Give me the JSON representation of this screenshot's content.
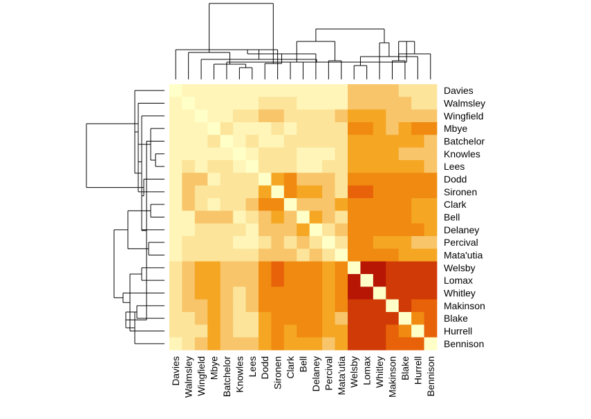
{
  "chart_data": {
    "type": "heatmap",
    "title": "",
    "xlabel": "",
    "ylabel": "",
    "row_labels": [
      "Davies",
      "Walmsley",
      "Wingfield",
      "Mbye",
      "Batchelor",
      "Knowles",
      "Lees",
      "Dodd",
      "Sironen",
      "Clark",
      "Bell",
      "Delaney",
      "Percival",
      "Mata'utia",
      "Welsby",
      "Lomax",
      "Whitley",
      "Makinson",
      "Blake",
      "Hurrell",
      "Bennison"
    ],
    "col_labels": [
      "Davies",
      "Walmsley",
      "Wingfield",
      "Mbye",
      "Batchelor",
      "Knowles",
      "Lees",
      "Dodd",
      "Sironen",
      "Clark",
      "Bell",
      "Delaney",
      "Percival",
      "Mata'utia",
      "Welsby",
      "Lomax",
      "Whitley",
      "Makinson",
      "Blake",
      "Hurrell",
      "Bennison"
    ],
    "value_range": [
      0,
      10
    ],
    "color_scale": [
      "#ffffc8",
      "#fff5b8",
      "#fce49a",
      "#f8c56a",
      "#f5a623",
      "#f08a10",
      "#e8620a",
      "#d03a06",
      "#b81604",
      "#7d0022"
    ],
    "values": [
      [
        0,
        1,
        1,
        1,
        1,
        1,
        1,
        1,
        1,
        1,
        1,
        1,
        1,
        1,
        3,
        3,
        3,
        3,
        2,
        2,
        2
      ],
      [
        1,
        0,
        1,
        1,
        1,
        1,
        1,
        2,
        2,
        2,
        1,
        1,
        1,
        1,
        3,
        3,
        3,
        3,
        3,
        2,
        2
      ],
      [
        1,
        1,
        0,
        1,
        1,
        2,
        2,
        3,
        3,
        2,
        2,
        2,
        2,
        3,
        4,
        4,
        4,
        3,
        3,
        3,
        3
      ],
      [
        1,
        1,
        1,
        0,
        2,
        1,
        1,
        1,
        2,
        1,
        2,
        2,
        2,
        2,
        5,
        5,
        4,
        3,
        4,
        5,
        5
      ],
      [
        1,
        1,
        1,
        2,
        0,
        1,
        2,
        1,
        1,
        2,
        2,
        2,
        2,
        2,
        4,
        4,
        4,
        4,
        4,
        4,
        3
      ],
      [
        1,
        1,
        1,
        1,
        1,
        0,
        1,
        2,
        2,
        2,
        1,
        1,
        1,
        2,
        4,
        4,
        4,
        4,
        3,
        3,
        3
      ],
      [
        1,
        2,
        1,
        2,
        2,
        1,
        0,
        2,
        2,
        2,
        1,
        1,
        2,
        2,
        4,
        4,
        4,
        4,
        4,
        4,
        3
      ],
      [
        1,
        3,
        3,
        1,
        2,
        2,
        2,
        0,
        4,
        6,
        3,
        3,
        3,
        2,
        6,
        6,
        6,
        6,
        5,
        5,
        5
      ],
      [
        1,
        3,
        2,
        2,
        2,
        2,
        2,
        4,
        0,
        6,
        4,
        4,
        3,
        2,
        7,
        7,
        6,
        6,
        5,
        5,
        5
      ],
      [
        1,
        3,
        2,
        1,
        2,
        2,
        3,
        5,
        5,
        0,
        3,
        3,
        3,
        4,
        6,
        6,
        6,
        5,
        5,
        4,
        4
      ],
      [
        1,
        1,
        3,
        3,
        3,
        1,
        2,
        3,
        4,
        3,
        0,
        4,
        3,
        2,
        6,
        6,
        5,
        5,
        5,
        4,
        4
      ],
      [
        1,
        1,
        2,
        2,
        2,
        2,
        1,
        3,
        3,
        3,
        4,
        0,
        2,
        3,
        6,
        6,
        5,
        5,
        5,
        5,
        4
      ],
      [
        1,
        2,
        2,
        2,
        2,
        1,
        1,
        2,
        3,
        2,
        3,
        2,
        0,
        2,
        5,
        5,
        4,
        4,
        4,
        3,
        3
      ],
      [
        1,
        2,
        2,
        2,
        2,
        2,
        2,
        3,
        3,
        3,
        2,
        3,
        2,
        0,
        5,
        5,
        5,
        5,
        4,
        4,
        4
      ],
      [
        2,
        3,
        4,
        4,
        3,
        3,
        3,
        6,
        7,
        6,
        6,
        6,
        4,
        5,
        0,
        9,
        9,
        8,
        8,
        8,
        8
      ],
      [
        2,
        3,
        4,
        4,
        3,
        3,
        3,
        6,
        7,
        6,
        6,
        6,
        4,
        5,
        9,
        0,
        9,
        8,
        8,
        8,
        8
      ],
      [
        2,
        3,
        4,
        4,
        3,
        2,
        3,
        6,
        6,
        6,
        6,
        5,
        4,
        5,
        9,
        9,
        0,
        8,
        8,
        8,
        8
      ],
      [
        2,
        3,
        3,
        4,
        3,
        2,
        3,
        6,
        6,
        5,
        5,
        5,
        4,
        5,
        8,
        8,
        8,
        0,
        8,
        7,
        7
      ],
      [
        2,
        2,
        3,
        4,
        3,
        2,
        2,
        4,
        5,
        5,
        5,
        5,
        4,
        3,
        8,
        8,
        8,
        8,
        0,
        6,
        7
      ],
      [
        2,
        2,
        2,
        4,
        3,
        2,
        2,
        4,
        5,
        4,
        5,
        6,
        4,
        4,
        8,
        8,
        8,
        7,
        6,
        0,
        7
      ],
      [
        1,
        2,
        3,
        4,
        3,
        3,
        3,
        4,
        5,
        4,
        4,
        4,
        3,
        4,
        8,
        8,
        8,
        7,
        7,
        7,
        0
      ]
    ]
  }
}
